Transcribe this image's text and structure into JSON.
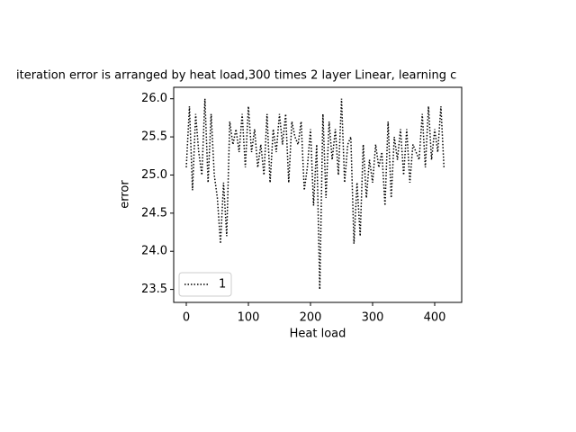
{
  "chart_data": {
    "type": "line",
    "title": "iteration error is arranged by heat load,300 times 2 layer Linear, learning c",
    "xlabel": "Heat load",
    "ylabel": "error",
    "x": [
      0,
      5,
      10,
      15,
      20,
      25,
      30,
      35,
      40,
      45,
      50,
      55,
      60,
      65,
      70,
      75,
      80,
      85,
      90,
      95,
      100,
      105,
      110,
      115,
      120,
      125,
      130,
      135,
      140,
      145,
      150,
      155,
      160,
      165,
      170,
      175,
      180,
      185,
      190,
      195,
      200,
      205,
      210,
      215,
      220,
      225,
      230,
      235,
      240,
      245,
      250,
      255,
      260,
      265,
      270,
      275,
      280,
      285,
      290,
      295,
      300,
      305,
      310,
      315,
      320,
      325,
      330,
      335,
      340,
      345,
      350,
      355,
      360,
      365,
      370,
      375,
      380,
      385,
      390,
      395,
      400,
      405,
      410,
      415
    ],
    "series": [
      {
        "name": "1",
        "color": "#000000",
        "values": [
          25.1,
          25.9,
          24.8,
          25.8,
          25.3,
          25.0,
          26.0,
          24.9,
          25.8,
          25.0,
          24.7,
          24.1,
          24.9,
          24.2,
          25.7,
          25.4,
          25.6,
          25.3,
          25.8,
          25.1,
          25.9,
          25.3,
          25.6,
          25.1,
          25.4,
          25.0,
          25.8,
          24.9,
          25.6,
          25.3,
          25.8,
          25.4,
          25.8,
          24.9,
          25.7,
          25.5,
          25.4,
          25.7,
          24.8,
          25.1,
          25.6,
          24.6,
          25.4,
          23.5,
          25.8,
          24.7,
          25.7,
          25.2,
          25.6,
          25.0,
          26.0,
          24.9,
          25.4,
          25.5,
          24.1,
          24.9,
          24.2,
          25.4,
          24.7,
          25.2,
          24.9,
          25.4,
          25.1,
          25.3,
          24.6,
          25.7,
          24.7,
          25.5,
          25.2,
          25.6,
          25.0,
          25.6,
          24.9,
          25.4,
          25.3,
          25.2,
          25.8,
          25.1,
          25.9,
          25.2,
          25.6,
          25.3,
          25.9,
          25.1
        ]
      }
    ],
    "xlim": [
      -20.3,
      443.5
    ],
    "ylim": [
      23.33,
      26.15
    ],
    "xticks": [
      0,
      100,
      200,
      300,
      400
    ],
    "yticks": [
      23.5,
      {
        "value": 24,
        "label": "24.0"
      },
      24.5,
      {
        "value": 25,
        "label": "25.0"
      },
      25.5,
      {
        "value": 26,
        "label": "26.0"
      }
    ],
    "legend": "lower left",
    "line_style": "dotted",
    "grid": false
  }
}
